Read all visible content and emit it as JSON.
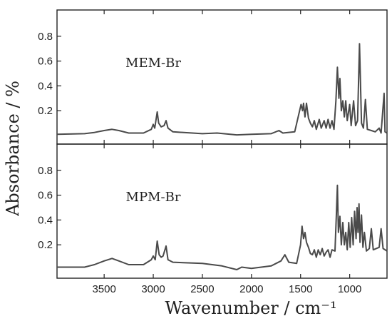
{
  "chart_data": {
    "type": "line",
    "xlabel": "Wavenumber / cm⁻¹",
    "ylabel": "Absorbance / %",
    "xlim": [
      3980,
      620
    ],
    "x_reversed": true,
    "x_ticks": [
      3500,
      3000,
      2500,
      2000,
      1500,
      1000
    ],
    "x_tick_labels": [
      "3500",
      "3000",
      "2500",
      "2000",
      "1500",
      "1000"
    ],
    "grid": false,
    "legend": "none",
    "panels": [
      {
        "label": "MEM-Br",
        "ylim": [
          0,
          1.0
        ],
        "y_ticks": [
          0.2,
          0.4,
          0.6,
          0.8
        ],
        "y_tick_labels": [
          "0.2",
          "0.4",
          "0.6",
          "0.8"
        ],
        "series": [
          {
            "color": "#4a4a4a",
            "points": [
              [
                3980,
                0.01
              ],
              [
                3700,
                0.015
              ],
              [
                3600,
                0.025
              ],
              [
                3500,
                0.04
              ],
              [
                3420,
                0.05
              ],
              [
                3350,
                0.04
              ],
              [
                3250,
                0.02
              ],
              [
                3100,
                0.02
              ],
              [
                3020,
                0.05
              ],
              [
                3000,
                0.09
              ],
              [
                2985,
                0.06
              ],
              [
                2960,
                0.19
              ],
              [
                2945,
                0.1
              ],
              [
                2920,
                0.07
              ],
              [
                2890,
                0.08
              ],
              [
                2870,
                0.12
              ],
              [
                2850,
                0.06
              ],
              [
                2800,
                0.03
              ],
              [
                2500,
                0.015
              ],
              [
                2350,
                0.02
              ],
              [
                2150,
                0.005
              ],
              [
                2000,
                0.01
              ],
              [
                1800,
                0.015
              ],
              [
                1720,
                0.04
              ],
              [
                1680,
                0.02
              ],
              [
                1560,
                0.03
              ],
              [
                1495,
                0.25
              ],
              [
                1480,
                0.2
              ],
              [
                1470,
                0.26
              ],
              [
                1455,
                0.15
              ],
              [
                1440,
                0.26
              ],
              [
                1420,
                0.14
              ],
              [
                1400,
                0.1
              ],
              [
                1380,
                0.07
              ],
              [
                1360,
                0.12
              ],
              [
                1340,
                0.05
              ],
              [
                1310,
                0.13
              ],
              [
                1290,
                0.06
              ],
              [
                1260,
                0.12
              ],
              [
                1240,
                0.06
              ],
              [
                1220,
                0.13
              ],
              [
                1200,
                0.06
              ],
              [
                1180,
                0.12
              ],
              [
                1160,
                0.05
              ],
              [
                1140,
                0.28
              ],
              [
                1125,
                0.55
              ],
              [
                1110,
                0.3
              ],
              [
                1100,
                0.46
              ],
              [
                1085,
                0.2
              ],
              [
                1070,
                0.28
              ],
              [
                1055,
                0.15
              ],
              [
                1040,
                0.28
              ],
              [
                1025,
                0.12
              ],
              [
                1000,
                0.25
              ],
              [
                985,
                0.08
              ],
              [
                960,
                0.28
              ],
              [
                940,
                0.08
              ],
              [
                920,
                0.12
              ],
              [
                900,
                0.74
              ],
              [
                880,
                0.1
              ],
              [
                860,
                0.06
              ],
              [
                840,
                0.29
              ],
              [
                820,
                0.05
              ],
              [
                780,
                0.04
              ],
              [
                740,
                0.03
              ],
              [
                700,
                0.06
              ],
              [
                680,
                0.02
              ],
              [
                650,
                0.34
              ],
              [
                640,
                0.03
              ],
              [
                620,
                0.02
              ]
            ]
          }
        ]
      },
      {
        "label": "MPM-Br",
        "ylim": [
          0,
          1.0
        ],
        "y_ticks": [
          0.2,
          0.4,
          0.6,
          0.8
        ],
        "y_tick_labels": [
          "0.2",
          "0.4",
          "0.6",
          "0.8"
        ],
        "series": [
          {
            "color": "#4a4a4a",
            "points": [
              [
                3980,
                0.02
              ],
              [
                3700,
                0.02
              ],
              [
                3600,
                0.04
              ],
              [
                3500,
                0.07
              ],
              [
                3420,
                0.09
              ],
              [
                3350,
                0.07
              ],
              [
                3250,
                0.04
              ],
              [
                3100,
                0.04
              ],
              [
                3020,
                0.08
              ],
              [
                3000,
                0.11
              ],
              [
                2980,
                0.08
              ],
              [
                2960,
                0.23
              ],
              [
                2940,
                0.12
              ],
              [
                2920,
                0.1
              ],
              [
                2900,
                0.11
              ],
              [
                2870,
                0.19
              ],
              [
                2850,
                0.08
              ],
              [
                2800,
                0.06
              ],
              [
                2500,
                0.05
              ],
              [
                2300,
                0.03
              ],
              [
                2150,
                0.0
              ],
              [
                2100,
                0.02
              ],
              [
                2000,
                0.01
              ],
              [
                1800,
                0.03
              ],
              [
                1700,
                0.07
              ],
              [
                1660,
                0.12
              ],
              [
                1620,
                0.06
              ],
              [
                1540,
                0.05
              ],
              [
                1500,
                0.2
              ],
              [
                1485,
                0.35
              ],
              [
                1470,
                0.25
              ],
              [
                1455,
                0.3
              ],
              [
                1440,
                0.22
              ],
              [
                1420,
                0.18
              ],
              [
                1400,
                0.13
              ],
              [
                1380,
                0.12
              ],
              [
                1360,
                0.16
              ],
              [
                1340,
                0.1
              ],
              [
                1320,
                0.16
              ],
              [
                1300,
                0.12
              ],
              [
                1280,
                0.17
              ],
              [
                1260,
                0.11
              ],
              [
                1240,
                0.14
              ],
              [
                1220,
                0.16
              ],
              [
                1200,
                0.1
              ],
              [
                1180,
                0.16
              ],
              [
                1150,
                0.15
              ],
              [
                1135,
                0.45
              ],
              [
                1125,
                0.68
              ],
              [
                1115,
                0.3
              ],
              [
                1100,
                0.43
              ],
              [
                1085,
                0.2
              ],
              [
                1070,
                0.38
              ],
              [
                1055,
                0.2
              ],
              [
                1040,
                0.3
              ],
              [
                1025,
                0.16
              ],
              [
                1010,
                0.38
              ],
              [
                995,
                0.18
              ],
              [
                980,
                0.42
              ],
              [
                965,
                0.2
              ],
              [
                950,
                0.47
              ],
              [
                935,
                0.25
              ],
              [
                925,
                0.5
              ],
              [
                915,
                0.3
              ],
              [
                905,
                0.53
              ],
              [
                895,
                0.22
              ],
              [
                880,
                0.44
              ],
              [
                865,
                0.18
              ],
              [
                850,
                0.3
              ],
              [
                830,
                0.15
              ],
              [
                800,
                0.17
              ],
              [
                780,
                0.33
              ],
              [
                760,
                0.16
              ],
              [
                700,
                0.18
              ],
              [
                680,
                0.33
              ],
              [
                660,
                0.17
              ],
              [
                620,
                0.15
              ]
            ]
          }
        ]
      }
    ]
  }
}
